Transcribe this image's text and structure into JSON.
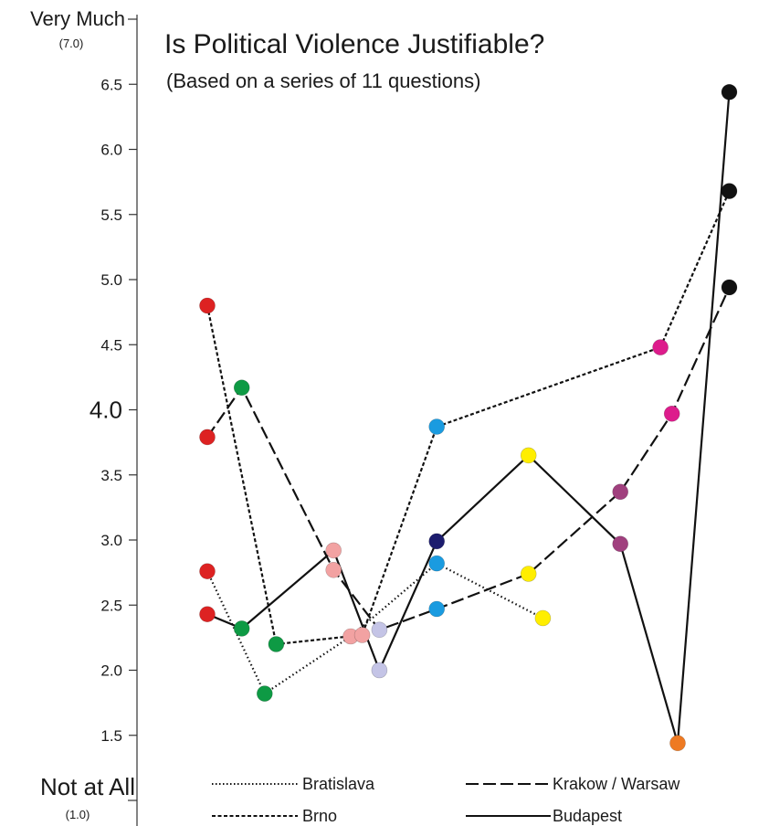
{
  "chart_data": {
    "type": "line",
    "title": "Is Political Violence Justifiable?",
    "subtitle": "(Based on a series of 11 questions)",
    "ylim": [
      1.0,
      7.0
    ],
    "y_ticks": [
      "1.5",
      "2.0",
      "2.5",
      "3.0",
      "3.5",
      "4.0",
      "4.5",
      "5.0",
      "5.5",
      "6.0",
      "6.5"
    ],
    "y_top_label": "Very Much",
    "y_top_value": "(7.0)",
    "y_bottom_label": "Not at All",
    "y_bottom_value": "(1.0)",
    "grid": false,
    "legend_position": "bottom",
    "question_colors": [
      "#dd2222",
      "#0e9a44",
      "#f2a2a2",
      "#c4c4e6",
      "#1a9be0",
      "#1c1c6e",
      "#ffee00",
      "#a0407e",
      "#dd1c8c",
      "#ee7a22",
      "#111111"
    ],
    "series": [
      {
        "name": "Bratislava",
        "style": "dotted",
        "points": [
          {
            "q": 1,
            "y": 2.76,
            "color": "#dd2222"
          },
          {
            "q": 2,
            "y": 1.82,
            "color": "#0e9a44"
          },
          {
            "q": 3.5,
            "y": 2.26,
            "color": "#f2a2a2"
          },
          {
            "q": 5,
            "y": 2.82,
            "color": "#1a9be0"
          },
          {
            "q": 6.85,
            "y": 2.4,
            "color": "#ffee00"
          }
        ]
      },
      {
        "name": "Brno",
        "style": "short-dash",
        "points": [
          {
            "q": 1,
            "y": 4.8,
            "color": "#dd2222"
          },
          {
            "q": 2.2,
            "y": 2.2,
            "color": "#0e9a44"
          },
          {
            "q": 3.7,
            "y": 2.27,
            "color": "#f2a2a2"
          },
          {
            "q": 5,
            "y": 3.87,
            "color": "#1a9be0"
          },
          {
            "q": 8.9,
            "y": 4.48,
            "color": "#dd1c8c"
          },
          {
            "q": 10.1,
            "y": 5.68,
            "color": "#111111"
          }
        ]
      },
      {
        "name": "Krakow / Warsaw",
        "style": "long-dash",
        "points": [
          {
            "q": 1,
            "y": 3.79,
            "color": "#dd2222"
          },
          {
            "q": 1.6,
            "y": 4.17,
            "color": "#0e9a44"
          },
          {
            "q": 3.2,
            "y": 2.77,
            "color": "#f2a2a2"
          },
          {
            "q": 4,
            "y": 2.31,
            "color": "#c4c4e6"
          },
          {
            "q": 5,
            "y": 2.47,
            "color": "#1a9be0"
          },
          {
            "q": 6.6,
            "y": 2.74,
            "color": "#ffee00"
          },
          {
            "q": 8.2,
            "y": 3.37,
            "color": "#a0407e"
          },
          {
            "q": 9.1,
            "y": 3.97,
            "color": "#dd1c8c"
          },
          {
            "q": 10.1,
            "y": 4.94,
            "color": "#111111"
          }
        ]
      },
      {
        "name": "Budapest",
        "style": "solid",
        "points": [
          {
            "q": 1,
            "y": 2.43,
            "color": "#dd2222"
          },
          {
            "q": 1.6,
            "y": 2.32,
            "color": "#0e9a44"
          },
          {
            "q": 3.2,
            "y": 2.92,
            "color": "#f2a2a2"
          },
          {
            "q": 4,
            "y": 2.0,
            "color": "#c4c4e6"
          },
          {
            "q": 5,
            "y": 2.99,
            "color": "#1c1c6e"
          },
          {
            "q": 6.6,
            "y": 3.65,
            "color": "#ffee00"
          },
          {
            "q": 8.2,
            "y": 2.97,
            "color": "#a0407e"
          },
          {
            "q": 9.2,
            "y": 1.44,
            "color": "#ee7a22"
          },
          {
            "q": 10.1,
            "y": 6.44,
            "color": "#111111"
          }
        ]
      }
    ]
  }
}
